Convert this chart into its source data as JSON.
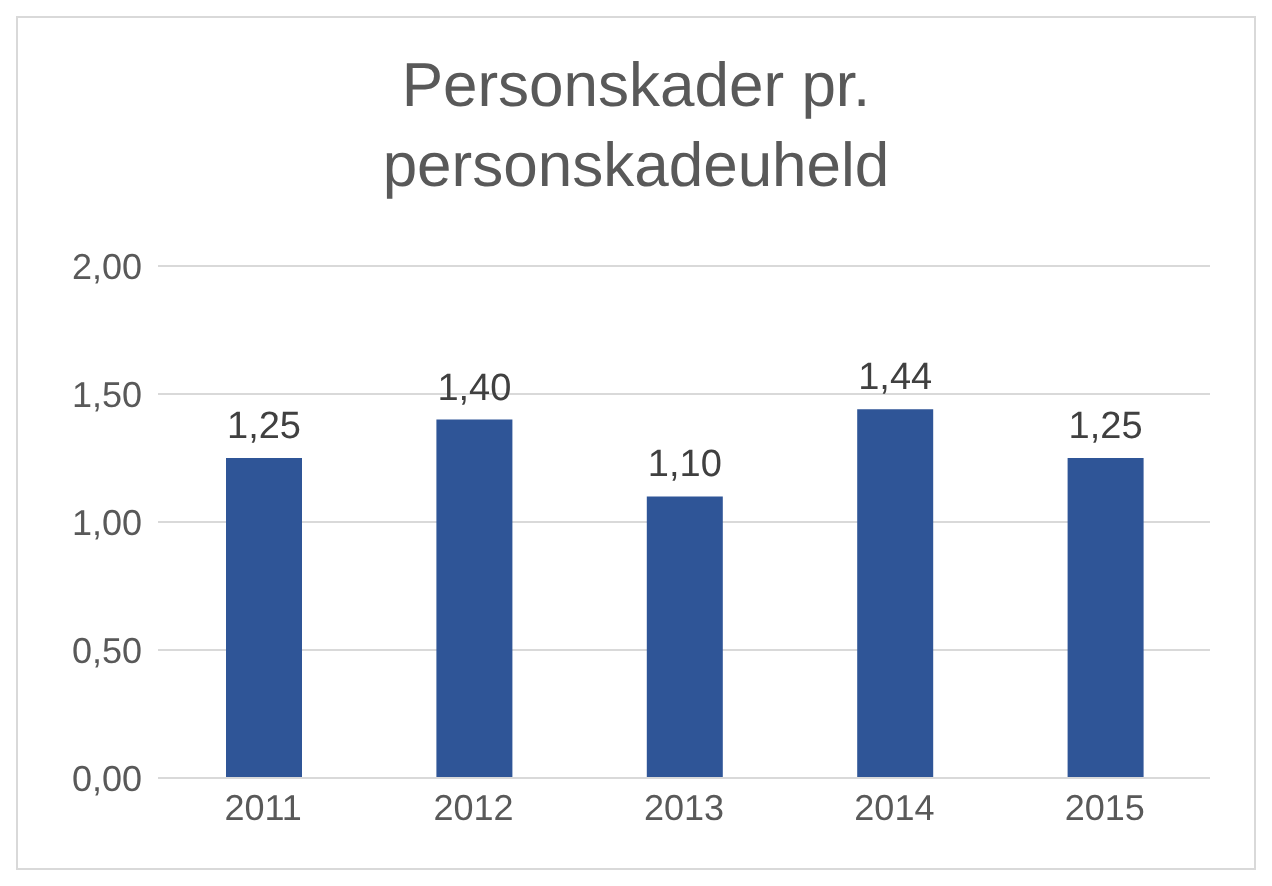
{
  "chart_data": {
    "type": "bar",
    "title": "Personskader pr. personskadeuheld",
    "categories": [
      "2011",
      "2012",
      "2013",
      "2014",
      "2015"
    ],
    "values": [
      1.25,
      1.4,
      1.1,
      1.44,
      1.25
    ],
    "value_labels": [
      "1,25",
      "1,40",
      "1,10",
      "1,44",
      "1,25"
    ],
    "color": "#2f5597",
    "ylim": [
      0,
      2
    ],
    "yticks": [
      {
        "value": 0,
        "label": "0,00"
      },
      {
        "value": 0.5,
        "label": "0,50"
      },
      {
        "value": 1,
        "label": "1,00"
      },
      {
        "value": 1.5,
        "label": "1,50"
      },
      {
        "value": 2,
        "label": "2,00"
      }
    ],
    "grid": "y"
  }
}
